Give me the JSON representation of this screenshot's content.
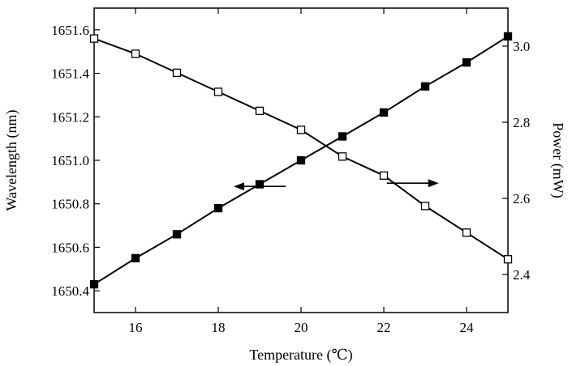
{
  "chart_data": {
    "type": "line",
    "title": "",
    "xlabel": "Temperature (℃)",
    "ylabel_left": "Wavelength (nm)",
    "ylabel_right": "Power (mW)",
    "xlim": [
      15,
      25
    ],
    "ylim_left": [
      1650.3,
      1651.7
    ],
    "ylim_right": [
      2.3,
      3.1
    ],
    "xticks": [
      16,
      18,
      20,
      22,
      24
    ],
    "xtick_labels": [
      "16",
      "18",
      "20",
      "22",
      "24"
    ],
    "yticks_left": [
      1650.4,
      1650.6,
      1650.8,
      1651.0,
      1651.2,
      1651.4,
      1651.6
    ],
    "ytick_labels_left": [
      "1650.4",
      "1650.6",
      "1650.8",
      "1651.0",
      "1651.2",
      "1651.4",
      "1651.6"
    ],
    "yticks_right": [
      2.4,
      2.6,
      2.8,
      3.0
    ],
    "ytick_labels_right": [
      "2.4",
      "2.6",
      "2.8",
      "3.0"
    ],
    "grid": false,
    "legend": "none",
    "x": [
      15,
      16,
      17,
      18,
      19,
      20,
      21,
      22,
      23,
      24,
      25
    ],
    "series": [
      {
        "axis": "left",
        "marker": "filled-square",
        "color": "#000000",
        "values": [
          1650.43,
          1650.55,
          1650.66,
          1650.78,
          1650.89,
          1651.0,
          1651.11,
          1651.22,
          1651.34,
          1651.45,
          1651.57
        ]
      },
      {
        "axis": "right",
        "marker": "open-square",
        "color": "#000000",
        "values": [
          3.02,
          2.98,
          2.93,
          2.88,
          2.83,
          2.78,
          2.71,
          2.66,
          2.58,
          2.51,
          2.44
        ]
      }
    ],
    "annotations": [
      {
        "type": "arrow",
        "direction": "left",
        "points_to": "left-axis",
        "near_x": 19,
        "near_y": 1650.88
      },
      {
        "type": "arrow",
        "direction": "right",
        "points_to": "right-axis",
        "near_x": 22.7,
        "near_y": 2.64
      }
    ]
  }
}
